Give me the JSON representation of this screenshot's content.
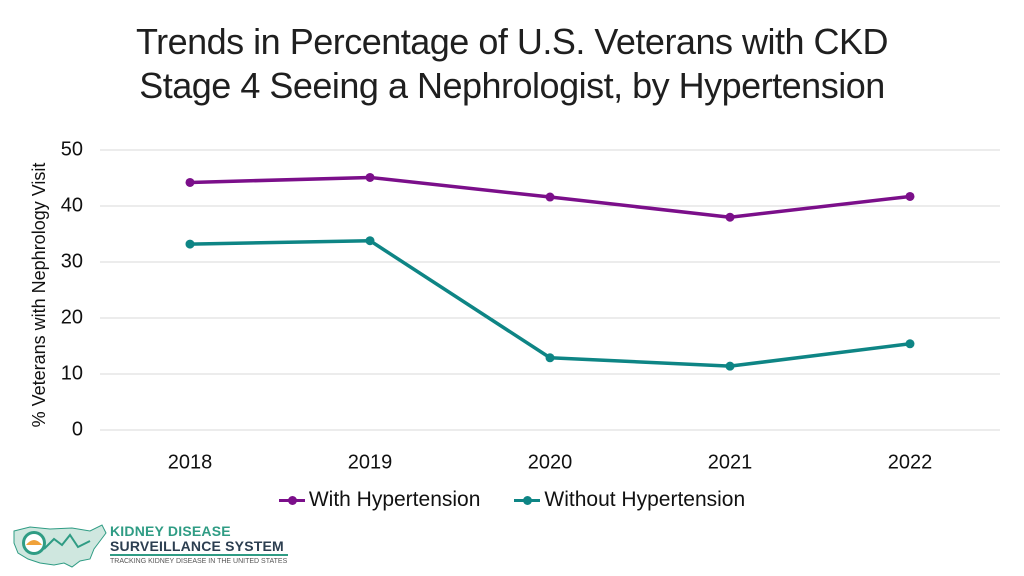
{
  "title": {
    "line1": "Trends in Percentage of U.S. Veterans with CKD",
    "line2": "Stage 4 Seeing a Nephrologist, by Hypertension"
  },
  "chart_data": {
    "type": "line",
    "title": "Trends in Percentage of U.S. Veterans with CKD Stage 4 Seeing a Nephrologist, by Hypertension",
    "xlabel": "",
    "ylabel": "% Veterans with Nephrology Visit",
    "categories": [
      "2018",
      "2019",
      "2020",
      "2021",
      "2022"
    ],
    "ylim": [
      0,
      50
    ],
    "yticks": [
      0,
      10,
      20,
      30,
      40,
      50
    ],
    "grid": true,
    "legend_position": "bottom",
    "series": [
      {
        "name": "With Hypertension",
        "color": "#7b0f8a",
        "values": [
          44.2,
          45.1,
          41.6,
          38.0,
          41.7
        ]
      },
      {
        "name": "Without Hypertension",
        "color": "#0e8585",
        "values": [
          33.2,
          33.8,
          12.9,
          11.4,
          15.4
        ]
      }
    ]
  },
  "logo": {
    "line1": "KIDNEY DISEASE",
    "line2": "SURVEILLANCE SYSTEM",
    "tagline": "TRACKING KIDNEY DISEASE IN THE UNITED STATES"
  }
}
